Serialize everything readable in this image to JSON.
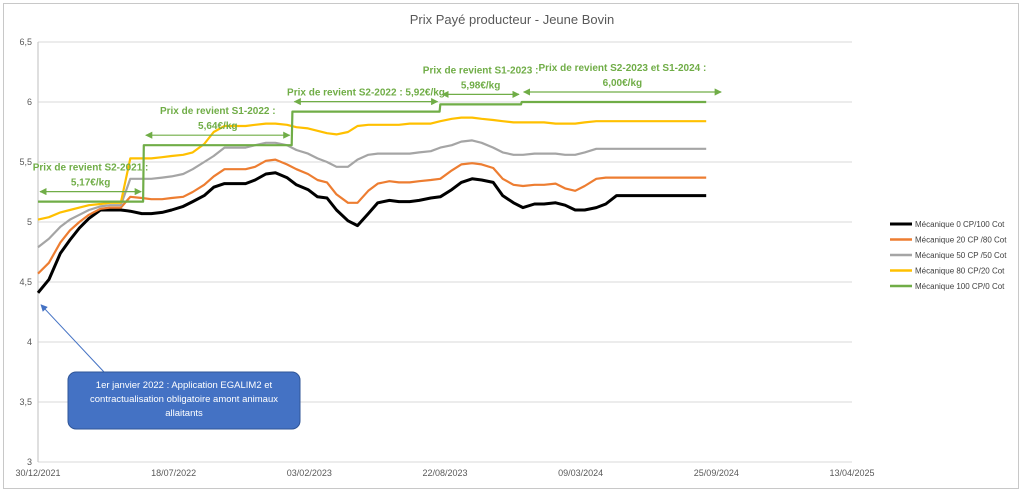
{
  "chart_data": {
    "type": "line",
    "title": "Prix Payé producteur - Jeune Bovin",
    "xlabel": "",
    "ylabel": "",
    "ylim": [
      3,
      6.5
    ],
    "yticks": [
      "3",
      "3,5",
      "4",
      "4,5",
      "5",
      "5,5",
      "6",
      "6,5"
    ],
    "xticks": [
      "30/12/2021",
      "18/07/2022",
      "03/02/2023",
      "22/08/2023",
      "09/03/2024",
      "25/09/2024",
      "13/04/2025"
    ],
    "grid": "horizontal",
    "legend": "right",
    "series": [
      {
        "name": "Mécanique 0 CP/100 Cot",
        "color": "#000000",
        "x": [
          "2021-12-30",
          "2022-01-15",
          "2022-02-01",
          "2022-02-15",
          "2022-03-01",
          "2022-03-15",
          "2022-04-01",
          "2022-04-15",
          "2022-05-01",
          "2022-05-15",
          "2022-06-01",
          "2022-06-15",
          "2022-07-01",
          "2022-07-15",
          "2022-08-01",
          "2022-08-15",
          "2022-09-01",
          "2022-09-15",
          "2022-10-01",
          "2022-10-15",
          "2022-11-01",
          "2022-11-15",
          "2022-12-01",
          "2022-12-15",
          "2023-01-01",
          "2023-01-15",
          "2023-02-01",
          "2023-02-15",
          "2023-03-01",
          "2023-03-15",
          "2023-04-01",
          "2023-04-15",
          "2023-05-01",
          "2023-05-15",
          "2023-06-01",
          "2023-06-15",
          "2023-07-01",
          "2023-07-15",
          "2023-08-01",
          "2023-08-15",
          "2023-09-01",
          "2023-09-15",
          "2023-10-01",
          "2023-10-15",
          "2023-11-01",
          "2023-11-15",
          "2023-12-01",
          "2023-12-15",
          "2024-01-01",
          "2024-01-15",
          "2024-02-01",
          "2024-02-15",
          "2024-03-01",
          "2024-03-15",
          "2024-04-01",
          "2024-04-15",
          "2024-05-01",
          "2024-05-15",
          "2024-06-01",
          "2024-06-15",
          "2024-07-01",
          "2024-07-15",
          "2024-08-01",
          "2024-08-15",
          "2024-09-01",
          "2024-09-10"
        ],
        "y": [
          4.41,
          4.52,
          4.74,
          4.85,
          4.95,
          5.03,
          5.1,
          5.1,
          5.1,
          5.09,
          5.07,
          5.07,
          5.08,
          5.1,
          5.13,
          5.17,
          5.22,
          5.29,
          5.32,
          5.32,
          5.32,
          5.35,
          5.4,
          5.41,
          5.37,
          5.31,
          5.27,
          5.21,
          5.2,
          5.1,
          5.01,
          4.97,
          5.07,
          5.16,
          5.18,
          5.17,
          5.17,
          5.18,
          5.2,
          5.21,
          5.27,
          5.33,
          5.36,
          5.35,
          5.33,
          5.22,
          5.16,
          5.12,
          5.15,
          5.15,
          5.16,
          5.14,
          5.1,
          5.1,
          5.12,
          5.15,
          5.22,
          5.22,
          5.22,
          5.22,
          5.22,
          5.22,
          5.22,
          5.22,
          5.22,
          5.22
        ]
      },
      {
        "name": "Mécanique 20 CP /80 Cot",
        "color": "#ed7d31",
        "x": [
          "2021-12-30",
          "2022-01-15",
          "2022-02-01",
          "2022-02-15",
          "2022-03-01",
          "2022-03-15",
          "2022-04-01",
          "2022-04-15",
          "2022-05-01",
          "2022-05-15",
          "2022-06-01",
          "2022-06-15",
          "2022-07-01",
          "2022-07-15",
          "2022-08-01",
          "2022-08-15",
          "2022-09-01",
          "2022-09-15",
          "2022-10-01",
          "2022-10-15",
          "2022-11-01",
          "2022-11-15",
          "2022-12-01",
          "2022-12-15",
          "2023-01-01",
          "2023-01-15",
          "2023-02-01",
          "2023-02-15",
          "2023-03-01",
          "2023-03-15",
          "2023-04-01",
          "2023-04-15",
          "2023-05-01",
          "2023-05-15",
          "2023-06-01",
          "2023-06-15",
          "2023-07-01",
          "2023-07-15",
          "2023-08-01",
          "2023-08-15",
          "2023-09-01",
          "2023-09-15",
          "2023-10-01",
          "2023-10-15",
          "2023-11-01",
          "2023-11-15",
          "2023-12-01",
          "2023-12-15",
          "2024-01-01",
          "2024-01-15",
          "2024-02-01",
          "2024-02-15",
          "2024-03-01",
          "2024-03-15",
          "2024-04-01",
          "2024-04-15",
          "2024-05-01",
          "2024-05-15",
          "2024-06-01",
          "2024-06-15",
          "2024-07-01",
          "2024-07-15",
          "2024-08-01",
          "2024-08-15",
          "2024-09-01",
          "2024-09-10"
        ],
        "y": [
          4.57,
          4.66,
          4.83,
          4.93,
          5.0,
          5.06,
          5.11,
          5.12,
          5.12,
          5.21,
          5.2,
          5.19,
          5.19,
          5.2,
          5.21,
          5.25,
          5.31,
          5.38,
          5.44,
          5.44,
          5.44,
          5.46,
          5.51,
          5.52,
          5.48,
          5.44,
          5.4,
          5.35,
          5.33,
          5.23,
          5.16,
          5.16,
          5.26,
          5.32,
          5.34,
          5.33,
          5.33,
          5.34,
          5.35,
          5.36,
          5.43,
          5.48,
          5.49,
          5.48,
          5.45,
          5.36,
          5.31,
          5.3,
          5.31,
          5.31,
          5.32,
          5.28,
          5.26,
          5.3,
          5.36,
          5.37,
          5.37,
          5.37,
          5.37,
          5.37,
          5.37,
          5.37,
          5.37,
          5.37,
          5.37,
          5.37
        ]
      },
      {
        "name": "Mécanique 50 CP /50 Cot",
        "color": "#a5a5a5",
        "x": [
          "2021-12-30",
          "2022-01-15",
          "2022-02-01",
          "2022-02-15",
          "2022-03-01",
          "2022-03-15",
          "2022-04-01",
          "2022-04-15",
          "2022-05-01",
          "2022-05-15",
          "2022-06-01",
          "2022-06-15",
          "2022-07-01",
          "2022-07-15",
          "2022-08-01",
          "2022-08-15",
          "2022-09-01",
          "2022-09-15",
          "2022-10-01",
          "2022-10-15",
          "2022-11-01",
          "2022-11-15",
          "2022-12-01",
          "2022-12-15",
          "2023-01-01",
          "2023-01-15",
          "2023-02-01",
          "2023-02-15",
          "2023-03-01",
          "2023-03-15",
          "2023-04-01",
          "2023-04-15",
          "2023-05-01",
          "2023-05-15",
          "2023-06-01",
          "2023-06-15",
          "2023-07-01",
          "2023-07-15",
          "2023-08-01",
          "2023-08-15",
          "2023-09-01",
          "2023-09-15",
          "2023-10-01",
          "2023-10-15",
          "2023-11-01",
          "2023-11-15",
          "2023-12-01",
          "2023-12-15",
          "2024-01-01",
          "2024-01-15",
          "2024-02-01",
          "2024-02-15",
          "2024-03-01",
          "2024-03-15",
          "2024-04-01",
          "2024-04-15",
          "2024-05-01",
          "2024-05-15",
          "2024-06-01",
          "2024-06-15",
          "2024-07-01",
          "2024-07-15",
          "2024-08-01",
          "2024-08-15",
          "2024-09-01",
          "2024-09-10"
        ],
        "y": [
          4.79,
          4.86,
          4.96,
          5.02,
          5.06,
          5.1,
          5.13,
          5.14,
          5.14,
          5.36,
          5.36,
          5.36,
          5.37,
          5.38,
          5.4,
          5.44,
          5.5,
          5.55,
          5.62,
          5.62,
          5.62,
          5.64,
          5.66,
          5.66,
          5.64,
          5.6,
          5.57,
          5.53,
          5.5,
          5.46,
          5.46,
          5.52,
          5.56,
          5.57,
          5.57,
          5.57,
          5.57,
          5.58,
          5.59,
          5.62,
          5.64,
          5.67,
          5.68,
          5.66,
          5.62,
          5.58,
          5.56,
          5.56,
          5.57,
          5.57,
          5.57,
          5.56,
          5.56,
          5.58,
          5.61,
          5.61,
          5.61,
          5.61,
          5.61,
          5.61,
          5.61,
          5.61,
          5.61,
          5.61,
          5.61,
          5.61
        ]
      },
      {
        "name": "Mécanique 80 CP/20 Cot",
        "color": "#ffc000",
        "x": [
          "2021-12-30",
          "2022-01-15",
          "2022-02-01",
          "2022-02-15",
          "2022-03-01",
          "2022-03-15",
          "2022-04-01",
          "2022-04-15",
          "2022-05-01",
          "2022-05-15",
          "2022-06-01",
          "2022-06-15",
          "2022-07-01",
          "2022-07-15",
          "2022-08-01",
          "2022-08-15",
          "2022-09-01",
          "2022-09-15",
          "2022-10-01",
          "2022-10-15",
          "2022-11-01",
          "2022-11-15",
          "2022-12-01",
          "2022-12-15",
          "2023-01-01",
          "2023-01-15",
          "2023-02-01",
          "2023-02-15",
          "2023-03-01",
          "2023-03-15",
          "2023-04-01",
          "2023-04-15",
          "2023-05-01",
          "2023-05-15",
          "2023-06-01",
          "2023-06-15",
          "2023-07-01",
          "2023-07-15",
          "2023-08-01",
          "2023-08-15",
          "2023-09-01",
          "2023-09-15",
          "2023-10-01",
          "2023-10-15",
          "2023-11-01",
          "2023-11-15",
          "2023-12-01",
          "2023-12-15",
          "2024-01-01",
          "2024-01-15",
          "2024-02-01",
          "2024-02-15",
          "2024-03-01",
          "2024-03-15",
          "2024-04-01",
          "2024-04-15",
          "2024-05-01",
          "2024-05-15",
          "2024-06-01",
          "2024-06-15",
          "2024-07-01",
          "2024-07-15",
          "2024-08-01",
          "2024-08-15",
          "2024-09-01",
          "2024-09-10"
        ],
        "y": [
          5.02,
          5.04,
          5.08,
          5.1,
          5.12,
          5.14,
          5.15,
          5.16,
          5.16,
          5.53,
          5.53,
          5.53,
          5.54,
          5.55,
          5.56,
          5.58,
          5.65,
          5.75,
          5.8,
          5.8,
          5.8,
          5.81,
          5.82,
          5.82,
          5.81,
          5.79,
          5.78,
          5.76,
          5.74,
          5.73,
          5.75,
          5.8,
          5.81,
          5.81,
          5.81,
          5.81,
          5.82,
          5.82,
          5.82,
          5.84,
          5.86,
          5.87,
          5.87,
          5.86,
          5.85,
          5.84,
          5.83,
          5.83,
          5.83,
          5.83,
          5.82,
          5.82,
          5.82,
          5.83,
          5.84,
          5.84,
          5.84,
          5.84,
          5.84,
          5.84,
          5.84,
          5.84,
          5.84,
          5.84,
          5.84,
          5.84
        ]
      },
      {
        "name": "Mécanique 100 CP/0 Cot",
        "color": "#70ad47",
        "x": [
          "2021-12-30",
          "2022-06-03",
          "2022-06-04",
          "2023-01-08",
          "2023-01-09",
          "2023-08-14",
          "2023-08-15",
          "2023-12-12",
          "2023-12-13",
          "2024-09-10"
        ],
        "y": [
          5.17,
          5.17,
          5.64,
          5.64,
          5.92,
          5.92,
          5.98,
          5.98,
          6.0,
          6.0
        ]
      }
    ],
    "annotations": [
      {
        "lines": [
          "Prix de revient S2-2021 :",
          "5,17€/kg"
        ],
        "from": "2021-12-30",
        "to": "2022-06-03",
        "value": 5.17
      },
      {
        "lines": [
          "Prix de revient S1-2022 :",
          "5,64€/kg"
        ],
        "from": "2022-06-04",
        "to": "2023-01-08",
        "value": 5.64
      },
      {
        "lines": [
          "Prix de revient S2-2022 :  5,92€/kg"
        ],
        "from": "2023-01-09",
        "to": "2023-08-14",
        "value": 5.92
      },
      {
        "lines": [
          "Prix de revient S1-2023 :",
          "5,98€/kg"
        ],
        "from": "2023-08-15",
        "to": "2023-12-12",
        "value": 5.98
      },
      {
        "lines": [
          "Prix de revient S2-2023 et S1-2024 :",
          "6,00€/kg"
        ],
        "from": "2023-12-13",
        "to": "2024-10-05",
        "value": 6.0
      }
    ],
    "callout": {
      "lines": [
        "1er janvier 2022 : Application EGALIM2 et",
        "contractualisation obligatoire amont animaux",
        "allaitants"
      ],
      "color": "#4472c4",
      "points_to": {
        "x": "2021-12-30",
        "y": 4.41
      }
    }
  }
}
